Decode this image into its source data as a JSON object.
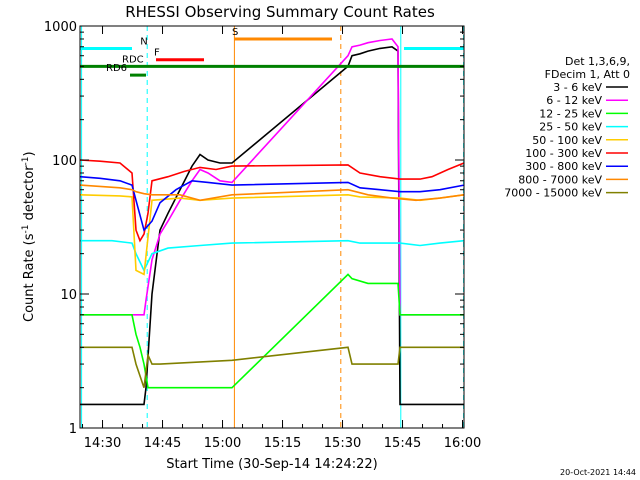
{
  "chart_data": {
    "type": "line",
    "title": "RHESSI Observing Summary Count Rates",
    "xlabel": "Start Time (30-Sep-14 14:24:22)",
    "ylabel_main": "Count Rate (s",
    "ylabel_sup1": "-1",
    "ylabel_mid": " detector",
    "ylabel_sup2": "-1",
    "ylabel_end": ")",
    "yscale": "log",
    "ylim": [
      1,
      1000
    ],
    "xlim_minutes": [
      0,
      96
    ],
    "x_ticks": [
      {
        "label": "14:30",
        "m": 5.63
      },
      {
        "label": "14:45",
        "m": 20.63
      },
      {
        "label": "15:00",
        "m": 35.63
      },
      {
        "label": "15:15",
        "m": 50.63
      },
      {
        "label": "15:30",
        "m": 65.63
      },
      {
        "label": "15:45",
        "m": 80.63
      },
      {
        "label": "16:00",
        "m": 95.63
      }
    ],
    "y_ticks": [
      {
        "label": "1",
        "v": 1
      },
      {
        "label": "10",
        "v": 10
      },
      {
        "label": "100",
        "v": 100
      },
      {
        "label": "1000",
        "v": 1000
      }
    ],
    "legend_header": [
      "Det 1,3,6,9,",
      "FDecim 1, Att 0"
    ],
    "legend_position": "right",
    "series": [
      {
        "name": "3 - 6 keV",
        "color": "#000000",
        "x": [
          0,
          10,
          16,
          16.5,
          18,
          20,
          22,
          25,
          28,
          30,
          32,
          35,
          38,
          67,
          68,
          70,
          72,
          75,
          78,
          79.5,
          80,
          82,
          85,
          90,
          96
        ],
        "y": [
          1.5,
          1.5,
          1.5,
          2,
          10,
          30,
          40,
          60,
          90,
          110,
          100,
          95,
          95,
          500,
          600,
          620,
          650,
          680,
          700,
          650,
          1.5,
          1.5,
          1.5,
          1.5,
          1.5
        ]
      },
      {
        "name": "6 - 12 keV",
        "color": "#ff00ff",
        "x": [
          0,
          13,
          16,
          16.5,
          18,
          20,
          22,
          25,
          28,
          30,
          32,
          35,
          38,
          67,
          68,
          70,
          72,
          75,
          78,
          79.5,
          80,
          82,
          85,
          90,
          96
        ],
        "y": [
          7,
          7,
          7,
          9,
          18,
          28,
          35,
          50,
          70,
          85,
          80,
          70,
          68,
          600,
          700,
          720,
          750,
          780,
          800,
          700,
          7,
          7,
          7,
          7,
          7
        ]
      },
      {
        "name": "12 - 25 keV",
        "color": "#00ff00",
        "x": [
          0,
          13,
          14,
          15,
          16,
          17,
          38,
          67,
          68,
          72,
          75,
          79.5,
          80,
          85,
          90,
          96
        ],
        "y": [
          7,
          7,
          5,
          4,
          3,
          2,
          2,
          14,
          13,
          12,
          12,
          12,
          7,
          7,
          7,
          7
        ]
      },
      {
        "name": "25 - 50 keV",
        "color": "#00ffff",
        "x": [
          0,
          8,
          13,
          14,
          16,
          18,
          22,
          30,
          38,
          67,
          70,
          80,
          85,
          90,
          96
        ],
        "y": [
          25,
          25,
          24,
          20,
          15,
          20,
          22,
          23,
          24,
          25,
          24,
          24,
          23,
          24,
          25
        ]
      },
      {
        "name": "50 - 100 keV",
        "color": "#ffcc00",
        "x": [
          0,
          10,
          13,
          14,
          16,
          18,
          25,
          30,
          38,
          67,
          70,
          80,
          85,
          90,
          96
        ],
        "y": [
          55,
          54,
          53,
          15,
          14,
          50,
          52,
          50,
          52,
          55,
          53,
          52,
          50,
          52,
          55
        ]
      },
      {
        "name": "100 - 300 keV",
        "color": "#ff0000",
        "x": [
          0,
          5,
          10,
          13,
          14,
          15,
          16,
          17,
          18,
          22,
          26,
          30,
          34,
          38,
          67,
          70,
          75,
          80,
          85,
          88,
          92,
          96
        ],
        "y": [
          100,
          98,
          95,
          80,
          30,
          25,
          28,
          40,
          70,
          75,
          82,
          88,
          85,
          90,
          92,
          80,
          75,
          72,
          72,
          75,
          85,
          95
        ]
      },
      {
        "name": "300 - 800 keV",
        "color": "#0000ff",
        "x": [
          0,
          5,
          10,
          13,
          14,
          16,
          18,
          20,
          24,
          28,
          32,
          38,
          67,
          70,
          75,
          80,
          85,
          90,
          96
        ],
        "y": [
          75,
          73,
          70,
          65,
          50,
          30,
          35,
          48,
          60,
          70,
          68,
          65,
          68,
          62,
          60,
          58,
          58,
          60,
          65
        ]
      },
      {
        "name": "800 - 7000 keV",
        "color": "#ff8800",
        "x": [
          0,
          10,
          13,
          14,
          16,
          18,
          25,
          30,
          38,
          67,
          72,
          78,
          84,
          90,
          96
        ],
        "y": [
          65,
          62,
          60,
          58,
          56,
          55,
          55,
          50,
          55,
          60,
          55,
          52,
          50,
          52,
          55
        ]
      },
      {
        "name": "7000 - 15000 keV",
        "color": "#808000",
        "x": [
          0,
          13,
          14,
          16,
          17,
          18,
          20,
          38,
          67,
          68,
          75,
          79.5,
          80,
          85,
          90,
          96
        ],
        "y": [
          4,
          4,
          3,
          2,
          3.5,
          3,
          3,
          3.2,
          4,
          3,
          3,
          3,
          4,
          4,
          4,
          4
        ]
      }
    ],
    "flag_lines": [
      {
        "label": "N",
        "color": "#00ffff",
        "y_level": 680,
        "segments": [
          [
            0,
            13
          ],
          [
            81,
            96
          ]
        ]
      },
      {
        "label": "F",
        "color": "#ff0000",
        "y_level": 560,
        "segments": [
          [
            19,
            31
          ]
        ]
      },
      {
        "label": "S",
        "color": "#ff8800",
        "y_level": 800,
        "segments": [
          [
            38.5,
            63
          ]
        ]
      },
      {
        "label": "RDC",
        "color": "#008000",
        "y_level": 500,
        "segments": [
          [
            0,
            96
          ]
        ]
      },
      {
        "label": "RD6",
        "color": "#008000",
        "y_level": 430,
        "segments": [
          [
            12.5,
            16.5
          ]
        ]
      }
    ],
    "vertical_lines": [
      {
        "m": 0.4,
        "color": "#00ffff",
        "style": "solid"
      },
      {
        "m": 16.8,
        "color": "#00ffff",
        "style": "dashed"
      },
      {
        "m": 38.6,
        "color": "#ff8800",
        "style": "solid"
      },
      {
        "m": 65.2,
        "color": "#ff8800",
        "style": "dashed"
      },
      {
        "m": 80.2,
        "color": "#00ffff",
        "style": "solid"
      },
      {
        "m": 95.9,
        "color": "#00ffff",
        "style": "dashed"
      }
    ],
    "footer_date": "20-Oct-2021 14:44"
  }
}
